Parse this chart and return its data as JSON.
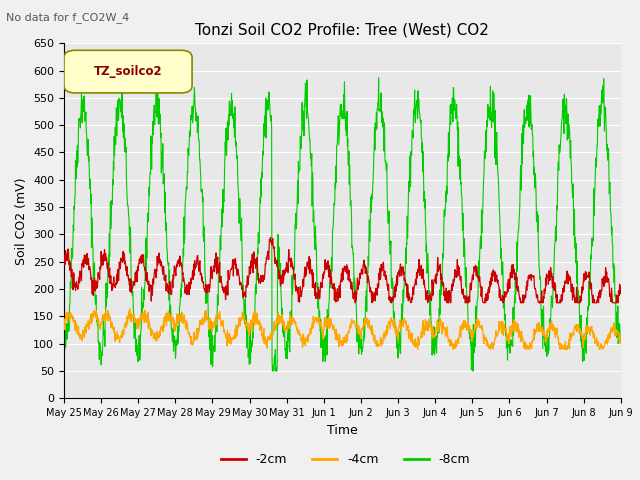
{
  "title": "Tonzi Soil CO2 Profile: Tree (West) CO2",
  "no_data_text": "No data for f_CO2W_4",
  "ylabel": "Soil CO2 (mV)",
  "xlabel": "Time",
  "legend_label": "TZ_soilco2",
  "series_labels": [
    "-2cm",
    "-4cm",
    "-8cm"
  ],
  "series_colors": [
    "#cc0000",
    "#ffa500",
    "#00cc00"
  ],
  "ylim": [
    0,
    650
  ],
  "yticks": [
    0,
    50,
    100,
    150,
    200,
    250,
    300,
    350,
    400,
    450,
    500,
    550,
    600,
    650
  ],
  "xtick_labels": [
    "May 25",
    "May 26",
    "May 27",
    "May 28",
    "May 29",
    "May 30",
    "May 31",
    "Jun 1",
    "Jun 2",
    "Jun 3",
    "Jun 4",
    "Jun 5",
    "Jun 6",
    "Jun 7",
    "Jun 8",
    "Jun 9"
  ],
  "background_color": "#f0f0f0",
  "plot_bg_color": "#e8e8e8",
  "legend_box_color": "#ffffcc",
  "legend_box_edge": "#888800",
  "legend_text_color": "#8b0000",
  "title_fontsize": 11,
  "axis_label_fontsize": 9,
  "tick_fontsize": 8
}
